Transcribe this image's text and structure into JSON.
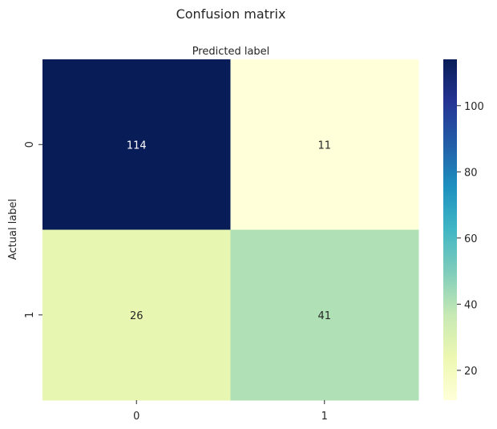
{
  "chart_data": {
    "type": "heatmap",
    "title": "Confusion matrix",
    "xlabel": "Predicted label",
    "ylabel": "Actual label",
    "x_categories": [
      "0",
      "1"
    ],
    "y_categories": [
      "0",
      "1"
    ],
    "values": [
      [
        114,
        11
      ],
      [
        26,
        41
      ]
    ],
    "xlabel_position": "top",
    "colormap": "YlGnBu",
    "colorbar": {
      "min": 11,
      "max": 114,
      "ticks": [
        20,
        40,
        60,
        80,
        100
      ]
    },
    "colors": {
      "cmap_stops": [
        "#ffffd9",
        "#edf8b1",
        "#c7e9b4",
        "#7fcdbb",
        "#41b6c4",
        "#1d91c0",
        "#225ea8",
        "#253494",
        "#081d58"
      ],
      "text_dark": "#262626",
      "text_light": "#ffffff"
    }
  }
}
